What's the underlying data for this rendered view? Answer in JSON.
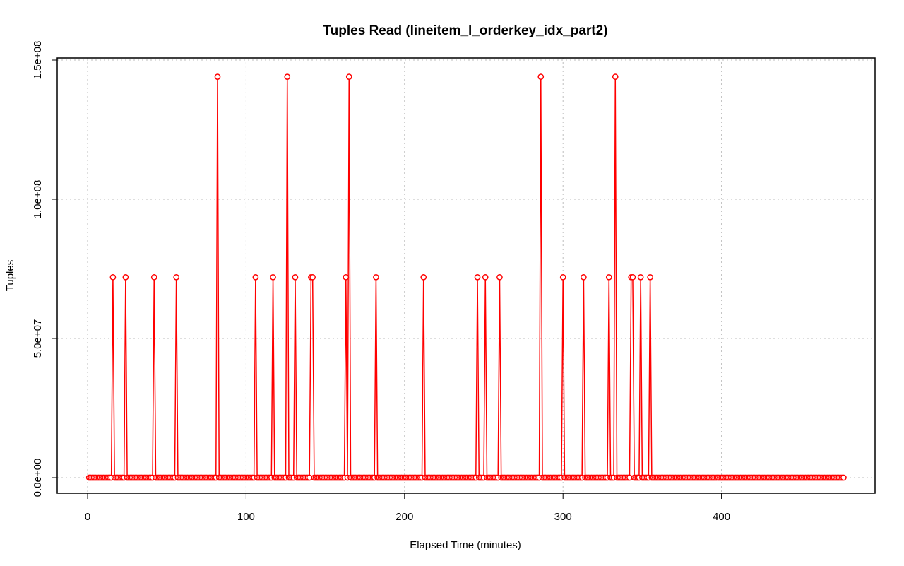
{
  "chart_data": {
    "type": "line",
    "title": "Tuples Read (lineitem_l_orderkey_idx_part2)",
    "xlabel": "Elapsed Time (minutes)",
    "ylabel": "Tuples",
    "xlim": [
      0,
      478
    ],
    "ylim": [
      0,
      150000000
    ],
    "x_ticks": [
      0,
      100,
      200,
      300,
      400
    ],
    "x_tick_labels": [
      "0",
      "100",
      "200",
      "300",
      "400"
    ],
    "y_ticks": [
      0,
      50000000,
      100000000,
      150000000
    ],
    "y_tick_labels": [
      "0.0e+00",
      "5.0e+07",
      "1.0e+08",
      "1.5e+08"
    ],
    "grid": true,
    "color": "#ff0000",
    "series": [
      {
        "x_start": 1,
        "x_end": 477,
        "x_step": 1,
        "baseline": 0,
        "spikes": [
          {
            "x": 16,
            "y": 72000000
          },
          {
            "x": 24,
            "y": 72000000
          },
          {
            "x": 42,
            "y": 72000000
          },
          {
            "x": 56,
            "y": 72000000
          },
          {
            "x": 82,
            "y": 144000000
          },
          {
            "x": 106,
            "y": 72000000
          },
          {
            "x": 117,
            "y": 72000000
          },
          {
            "x": 126,
            "y": 144000000
          },
          {
            "x": 131,
            "y": 72000000
          },
          {
            "x": 141,
            "y": 72000000
          },
          {
            "x": 142,
            "y": 72000000
          },
          {
            "x": 163,
            "y": 72000000
          },
          {
            "x": 165,
            "y": 144000000
          },
          {
            "x": 182,
            "y": 72000000
          },
          {
            "x": 212,
            "y": 72000000
          },
          {
            "x": 246,
            "y": 72000000
          },
          {
            "x": 251,
            "y": 72000000
          },
          {
            "x": 260,
            "y": 72000000
          },
          {
            "x": 286,
            "y": 144000000
          },
          {
            "x": 300,
            "y": 72000000
          },
          {
            "x": 313,
            "y": 72000000
          },
          {
            "x": 329,
            "y": 72000000
          },
          {
            "x": 333,
            "y": 144000000
          },
          {
            "x": 343,
            "y": 72000000
          },
          {
            "x": 344,
            "y": 72000000
          },
          {
            "x": 349,
            "y": 72000000
          },
          {
            "x": 355,
            "y": 72000000
          }
        ]
      }
    ]
  }
}
